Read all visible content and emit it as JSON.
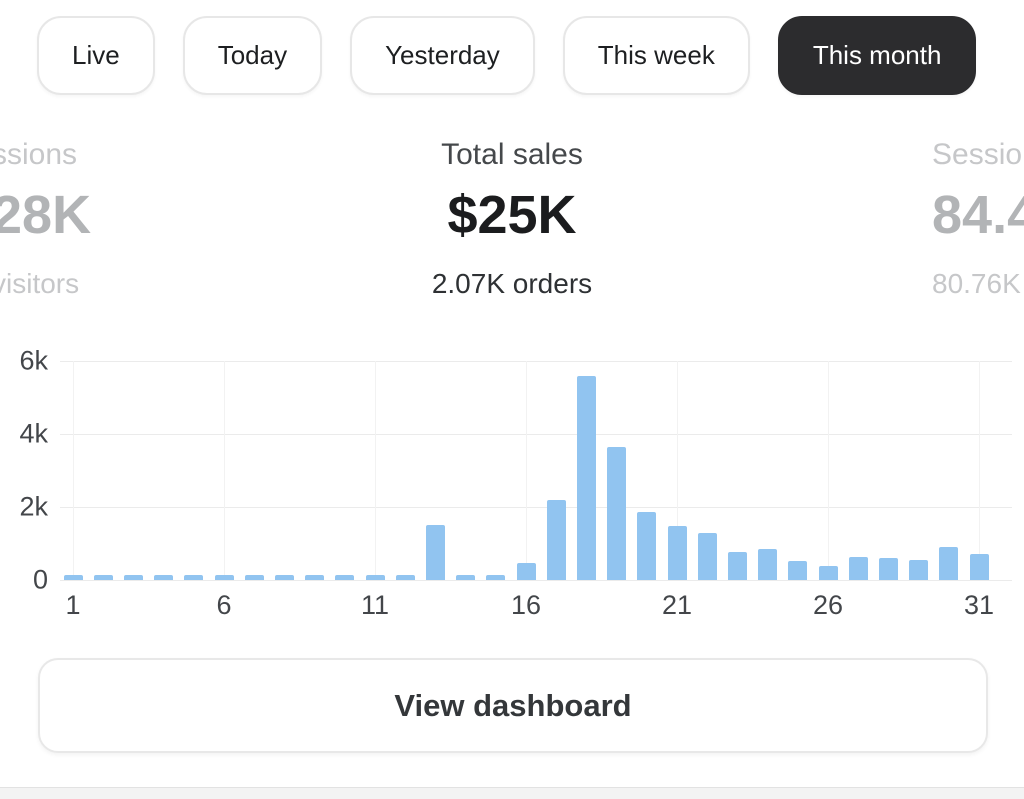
{
  "tabs": {
    "items": [
      {
        "label": "Live",
        "selected": false
      },
      {
        "label": "Today",
        "selected": false
      },
      {
        "label": "Yesterday",
        "selected": false
      },
      {
        "label": "This week",
        "selected": false
      },
      {
        "label": "This month",
        "selected": true
      }
    ]
  },
  "stats": {
    "left_partial": {
      "label": "ssions",
      "value": "28K",
      "sub": "visitors"
    },
    "center": {
      "label": "Total sales",
      "value": "$25K",
      "sub": "2.07K orders"
    },
    "right_partial": {
      "label": "Sessio",
      "value": "84.4",
      "sub": "80.76K"
    }
  },
  "chart_data": {
    "type": "bar",
    "x": [
      1,
      2,
      3,
      4,
      5,
      6,
      7,
      8,
      9,
      10,
      11,
      12,
      13,
      14,
      15,
      16,
      17,
      18,
      19,
      20,
      21,
      22,
      23,
      24,
      25,
      26,
      27,
      28,
      29,
      30,
      31
    ],
    "values": [
      150,
      150,
      150,
      150,
      150,
      150,
      150,
      150,
      150,
      150,
      150,
      150,
      1500,
      150,
      130,
      470,
      2200,
      5600,
      3650,
      1850,
      1480,
      1300,
      780,
      850,
      520,
      380,
      620,
      600,
      550,
      900,
      720
    ],
    "x_ticks": [
      1,
      6,
      11,
      16,
      21,
      26,
      31
    ],
    "y_ticks": [
      {
        "v": 0,
        "label": "0"
      },
      {
        "v": 2000,
        "label": "2k"
      },
      {
        "v": 4000,
        "label": "4k"
      },
      {
        "v": 6000,
        "label": "6k"
      }
    ],
    "ylim": [
      0,
      6000
    ],
    "xlabel": "",
    "ylabel": "",
    "grid": true,
    "legend": "none",
    "bar_color": "#91c4f0"
  },
  "footer": {
    "button_label": "View dashboard"
  },
  "colors": {
    "selected_tab_bg": "#2c2c2e",
    "bar": "#91c4f0",
    "accent_text": "#1b1c1e",
    "faded_text": "#b2b4b6"
  }
}
